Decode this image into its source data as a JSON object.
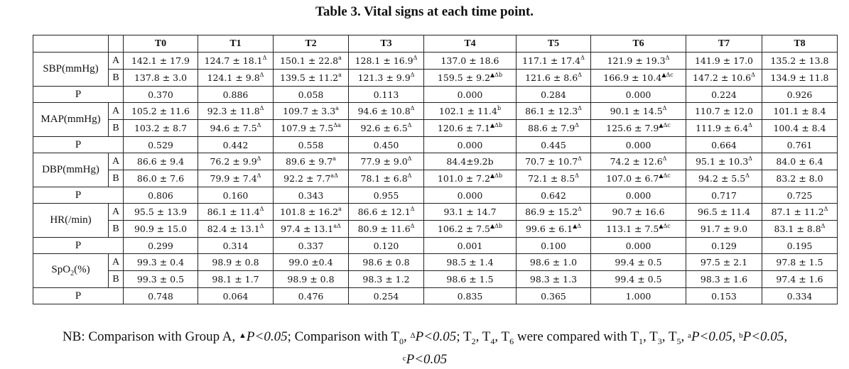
{
  "title": "Table 3. Vital signs at each time point.",
  "columns": [
    "T0",
    "T1",
    "T2",
    "T3",
    "T4",
    "T5",
    "T6",
    "T7",
    "T8"
  ],
  "groups": [
    {
      "name": "SBP(mmHg)",
      "rows": [
        {
          "label": "A",
          "cells": [
            [
              "142.1 ± 17.9",
              ""
            ],
            [
              "124.7 ± 18.1",
              "Δ"
            ],
            [
              "150.1 ± 22.8",
              "a"
            ],
            [
              "128.1 ± 16.9",
              "Δ"
            ],
            [
              "137.0 ± 18.6",
              ""
            ],
            [
              "117.1 ± 17.4",
              "Δ"
            ],
            [
              "121.9 ± 19.3",
              "Δ"
            ],
            [
              "141.9 ± 17.0",
              ""
            ],
            [
              "135.2 ± 13.8",
              ""
            ]
          ]
        },
        {
          "label": "B",
          "cells": [
            [
              "137.8 ± 3.0",
              ""
            ],
            [
              "124.1 ± 9.8",
              "Δ"
            ],
            [
              "139.5 ± 11.2",
              "a"
            ],
            [
              "121.3 ± 9.9",
              "Δ"
            ],
            [
              "159.5 ± 9.2",
              "▲Δb"
            ],
            [
              "121.6 ± 8.6",
              "Δ"
            ],
            [
              "166.9 ± 10.4",
              "▲Δc"
            ],
            [
              "147.2 ± 10.6",
              "Δ"
            ],
            [
              "134.9 ± 11.8",
              ""
            ]
          ]
        }
      ],
      "p": [
        "0.370",
        "0.886",
        "0.058",
        "0.113",
        "0.000",
        "0.284",
        "0.000",
        "0.224",
        "0.926"
      ]
    },
    {
      "name": "MAP(mmHg)",
      "rows": [
        {
          "label": "A",
          "cells": [
            [
              "105.2 ± 11.6",
              ""
            ],
            [
              "92.3 ± 11.8",
              "Δ"
            ],
            [
              "109.7 ± 3.3",
              "a"
            ],
            [
              "94.6 ± 10.8",
              "Δ"
            ],
            [
              "102.1 ± 11.4",
              "b"
            ],
            [
              "86.1 ± 12.3",
              "Δ"
            ],
            [
              "90.1 ± 14.5",
              "Δ"
            ],
            [
              "110.7 ± 12.0",
              ""
            ],
            [
              "101.1 ± 8.4",
              ""
            ]
          ]
        },
        {
          "label": "B",
          "cells": [
            [
              "103.2 ± 8.7",
              ""
            ],
            [
              "94.6 ± 7.5",
              "Δ"
            ],
            [
              "107.9 ± 7.5",
              "Δa"
            ],
            [
              "92.6 ± 6.5",
              "Δ"
            ],
            [
              "120.6 ± 7.1",
              "▲Δb"
            ],
            [
              "88.6 ± 7.9",
              "Δ"
            ],
            [
              "125.6 ± 7.9",
              "▲Δc"
            ],
            [
              "111.9 ± 6.4",
              "Δ"
            ],
            [
              "100.4 ± 8.4",
              ""
            ]
          ]
        }
      ],
      "p": [
        "0.529",
        "0.442",
        "0.558",
        "0.450",
        "0.000",
        "0.445",
        "0.000",
        "0.664",
        "0.761"
      ]
    },
    {
      "name": "DBP(mmHg)",
      "rows": [
        {
          "label": "A",
          "cells": [
            [
              "86.6 ± 9.4",
              ""
            ],
            [
              "76.2 ± 9.9",
              "Δ"
            ],
            [
              "89.6 ± 9.7",
              "a"
            ],
            [
              "77.9 ± 9.0",
              "Δ"
            ],
            [
              "84.4±9.2b",
              ""
            ],
            [
              "70.7 ± 10.7",
              "Δ"
            ],
            [
              "74.2 ± 12.6",
              "Δ"
            ],
            [
              "95.1 ± 10.3",
              "Δ"
            ],
            [
              "84.0 ± 6.4",
              ""
            ]
          ]
        },
        {
          "label": "B",
          "cells": [
            [
              "86.0 ± 7.6",
              ""
            ],
            [
              "79.9 ± 7.4",
              "Δ"
            ],
            [
              "92.2 ± 7.7",
              "aΔ"
            ],
            [
              "78.1 ± 6.8",
              "Δ"
            ],
            [
              "101.0 ± 7.2",
              "▲Δb"
            ],
            [
              "72.1 ± 8.5",
              "Δ"
            ],
            [
              "107.0 ± 6.7",
              "▲Δc"
            ],
            [
              "94.2 ± 5.5",
              "Δ"
            ],
            [
              "83.2 ± 8.0",
              ""
            ]
          ]
        }
      ],
      "p": [
        "0.806",
        "0.160",
        "0.343",
        "0.955",
        "0.000",
        "0.642",
        "0.000",
        "0.717",
        "0.725"
      ]
    },
    {
      "name": "HR(/min)",
      "rows": [
        {
          "label": "A",
          "cells": [
            [
              "95.5 ± 13.9",
              ""
            ],
            [
              "86.1 ± 11.4",
              "Δ"
            ],
            [
              "101.8 ± 16.2",
              "a"
            ],
            [
              "86.6 ± 12.1",
              "Δ"
            ],
            [
              "93.1 ± 14.7",
              ""
            ],
            [
              "86.9 ± 15.2",
              "Δ"
            ],
            [
              "90.7 ± 16.6",
              ""
            ],
            [
              "96.5 ± 11.4",
              ""
            ],
            [
              "87.1 ± 11.2",
              "Δ"
            ]
          ]
        },
        {
          "label": "B",
          "cells": [
            [
              "90.9 ± 15.0",
              ""
            ],
            [
              "82.4 ± 13.1",
              "Δ"
            ],
            [
              "97.4 ± 13.1",
              "aΔ"
            ],
            [
              "80.9 ± 11.6",
              "Δ"
            ],
            [
              "106.2 ± 7.5",
              "▲Δb"
            ],
            [
              "99.6 ± 6.1",
              "▲Δ"
            ],
            [
              "113.1 ± 7.5",
              "▲Δc"
            ],
            [
              "91.7 ± 9.0",
              ""
            ],
            [
              "83.1 ± 8.8",
              "Δ"
            ]
          ]
        }
      ],
      "p": [
        "0.299",
        "0.314",
        "0.337",
        "0.120",
        "0.001",
        "0.100",
        "0.000",
        "0.129",
        "0.195"
      ]
    },
    {
      "name": "SpO",
      "sub": "2",
      "name_tail": "(%)",
      "rows": [
        {
          "label": "A",
          "cells": [
            [
              "99.3 ± 0.4",
              ""
            ],
            [
              "98.9 ± 0.8",
              ""
            ],
            [
              "99.0 ±0.4",
              ""
            ],
            [
              "98.6 ± 0.8",
              ""
            ],
            [
              "98.5 ± 1.4",
              ""
            ],
            [
              "98.6 ± 1.0",
              ""
            ],
            [
              "99.4 ± 0.5",
              ""
            ],
            [
              "97.5 ± 2.1",
              ""
            ],
            [
              "97.8 ± 1.5",
              ""
            ]
          ]
        },
        {
          "label": "B",
          "cells": [
            [
              "99.3 ± 0.5",
              ""
            ],
            [
              "98.1 ± 1.7",
              ""
            ],
            [
              "98.9 ± 0.8",
              ""
            ],
            [
              "98.3 ± 1.2",
              ""
            ],
            [
              "98.6 ± 1.5",
              ""
            ],
            [
              "98.3 ± 1.3",
              ""
            ],
            [
              "99.4 ± 0.5",
              ""
            ],
            [
              "98.3 ± 1.6",
              ""
            ],
            [
              "97.4 ± 1.6",
              ""
            ]
          ]
        }
      ],
      "p": [
        "0.748",
        "0.064",
        "0.476",
        "0.254",
        "0.835",
        "0.365",
        "1.000",
        "0.153",
        "0.334"
      ]
    }
  ],
  "p_label": "P",
  "note": {
    "prefix": "NB: Comparison with Group A, ",
    "tri": "▲",
    "p_lt": "P<0.05",
    "mid1": "; Comparison with T",
    "t0_sub": "0",
    "delta": "Δ",
    "mid2": "; T",
    "t2_sub": "2",
    "comma1": ", T",
    "t4_sub": "4",
    "comma2": ", T",
    "t6_sub": "6",
    "mid3": " were compared with T",
    "t1_sub": "1",
    "comma3": ", T",
    "t3_sub": "3",
    "comma4": ", T",
    "t5_sub": "5",
    "comma5": ", ",
    "sup_a": "a",
    "sup_b": "b",
    "sup_c": "c",
    "sep": ", "
  }
}
